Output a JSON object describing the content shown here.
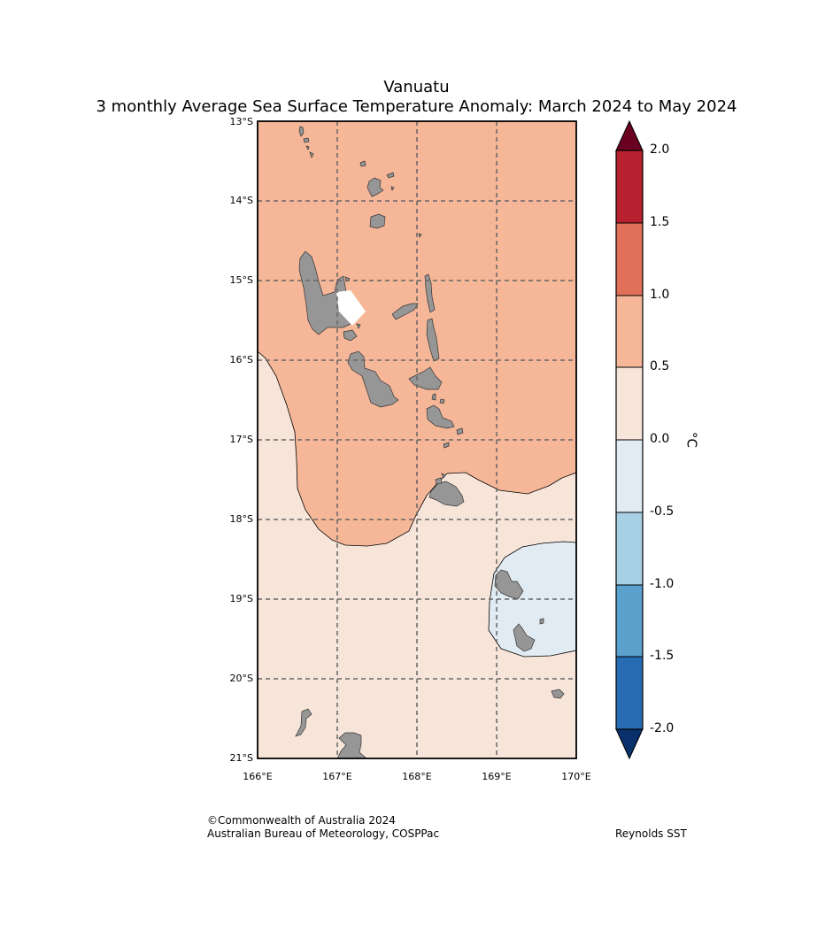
{
  "title": {
    "line1": "Vanuatu",
    "line2": "3 monthly Average Sea Surface Temperature Anomaly: March 2024 to May 2024"
  },
  "map": {
    "lat_labels": [
      "13°S",
      "14°S",
      "15°S",
      "16°S",
      "17°S",
      "18°S",
      "19°S",
      "20°S",
      "21°S"
    ],
    "lon_labels": [
      "166°E",
      "167°E",
      "168°E",
      "169°E",
      "170°E"
    ],
    "extent": {
      "lon_min": 166,
      "lon_max": 170,
      "lat_min": -21,
      "lat_max": -13
    },
    "anomaly_regions": [
      {
        "name": "north",
        "range": "0.5 to 1.0",
        "color": "#f6b799"
      },
      {
        "name": "south",
        "range": "0.0 to 0.5",
        "color": "#f8e5da"
      },
      {
        "name": "south-east",
        "range": "-0.5 to 0.0",
        "color": "#e0ebf3"
      }
    ],
    "land_color": "#969696",
    "grid_color": "#666666"
  },
  "colorbar": {
    "unit": "°C",
    "tick_labels": [
      "2.0",
      "1.5",
      "1.0",
      "0.5",
      "0.0",
      "-0.5",
      "-1.0",
      "-1.5",
      "-2.0"
    ],
    "colors": [
      "#b7202e",
      "#e07059",
      "#f6b799",
      "#f8e5da",
      "#e0ebf3",
      "#a8d0e4",
      "#5aa1cd",
      "#276cb3"
    ],
    "over_color": "#6b0120",
    "under_color": "#08306b"
  },
  "credits": {
    "copyright": "©Commonwealth of Australia 2024",
    "agency": "Australian Bureau of Meteorology, COSPPac",
    "source": "Reynolds SST"
  }
}
